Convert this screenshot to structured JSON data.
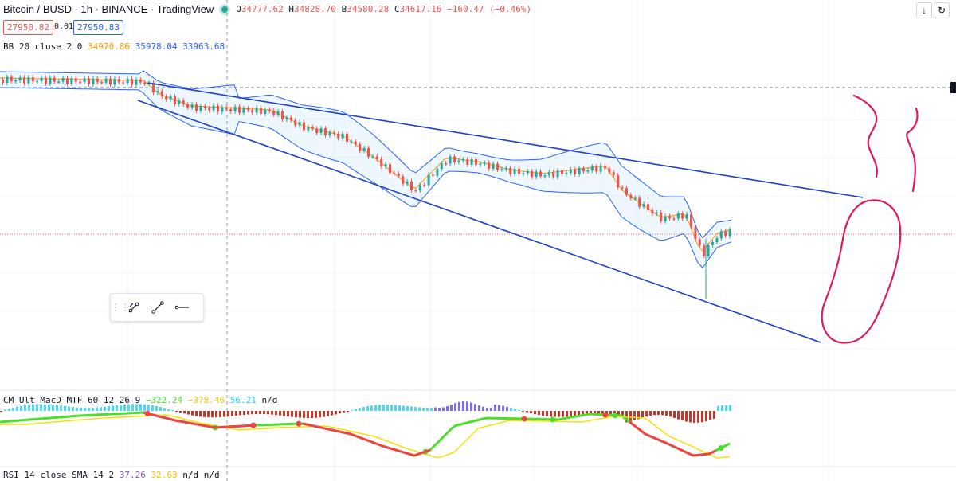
{
  "header": {
    "title": "Bitcoin / BUSD · 1h · BINANCE · TradingView",
    "open_label": "O",
    "open": "34777.62",
    "high_label": "H",
    "high": "34828.70",
    "low_label": "B",
    "low": "34580.28",
    "close_label": "C",
    "close": "34617.16",
    "change": "−160.47 (−0.46%)",
    "bid": "27950.82",
    "spread": "0.01",
    "ask": "27950.83"
  },
  "bb_legend": {
    "name": "BB 20 close 2 0",
    "basis": "34970.86",
    "upper": "35978.04",
    "lower": "33963.68"
  },
  "macd_legend": {
    "name": "CM_Ult_MacD_MTF 60 12 26 9",
    "v1": "−322.24",
    "v2": "−378.46",
    "v3": "56.21",
    "v4": "n/d"
  },
  "rsi_legend": {
    "name": "RSI 14 close SMA 14 2",
    "v1": "37.26",
    "v2": "32.63",
    "v3": "n/d",
    "v4": "n/d"
  },
  "top_right": {
    "down_icon": "arrow-down-icon",
    "reload_icon": "refresh-icon"
  },
  "toolbar": {
    "icons": [
      "drag-grip-icon",
      "trendline-angle-icon",
      "trendline-icon",
      "horizontal-ray-icon"
    ]
  },
  "colors": {
    "bull": "#26a69a",
    "bear": "#ef5350",
    "bb_basis": "#ff9800",
    "bb_band": "#2962ff",
    "channel": "#1e40c8",
    "annotation": "#e0185b",
    "macd_up": "#4cde2c",
    "signal": "#f5e10a"
  }
}
